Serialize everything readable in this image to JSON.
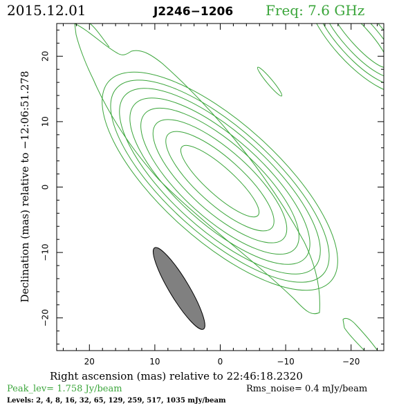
{
  "header": {
    "date": "2015.12.01",
    "source": "J2246−1206",
    "freq": "Freq: 7.6 GHz",
    "freq_color": "#3aa53a"
  },
  "footer": {
    "peak": "Peak_lev=  1.758 Jy/beam",
    "rms": "Rms_noise=  0.4 mJy/beam",
    "levels": "Levels:   2,   4,   8,  16,  32,  65, 129, 259, 517, 1035 mJy/beam"
  },
  "chart_data": {
    "type": "contour",
    "xlabel": "Right ascension (mas) relative to 22:46:18.2320",
    "ylabel": "Declination (mas) relative to −12:06:51.278",
    "xlim": [
      25,
      -25
    ],
    "ylim": [
      -25,
      25
    ],
    "x_reversed": true,
    "x_ticks": [
      20,
      10,
      0,
      -10,
      -20
    ],
    "x_tick_labels": [
      "20",
      "10",
      "0",
      "−10",
      "−20"
    ],
    "y_ticks": [
      20,
      10,
      0,
      -10,
      -20
    ],
    "y_tick_labels": [
      "20",
      "10",
      "0",
      "−10",
      "−20"
    ],
    "contour_color": "#3aa53a",
    "levels_mJy": [
      2,
      4,
      8,
      16,
      32,
      65,
      129,
      259,
      517,
      1035
    ],
    "peak_Jy_per_beam": 1.758,
    "rms_noise_mJy_per_beam": 0.4,
    "beam": {
      "center": [
        6.3,
        -15.5
      ],
      "major_mas": 14.5,
      "minor_mas": 3.0,
      "pa_deg": 31,
      "color": "#808080"
    }
  }
}
